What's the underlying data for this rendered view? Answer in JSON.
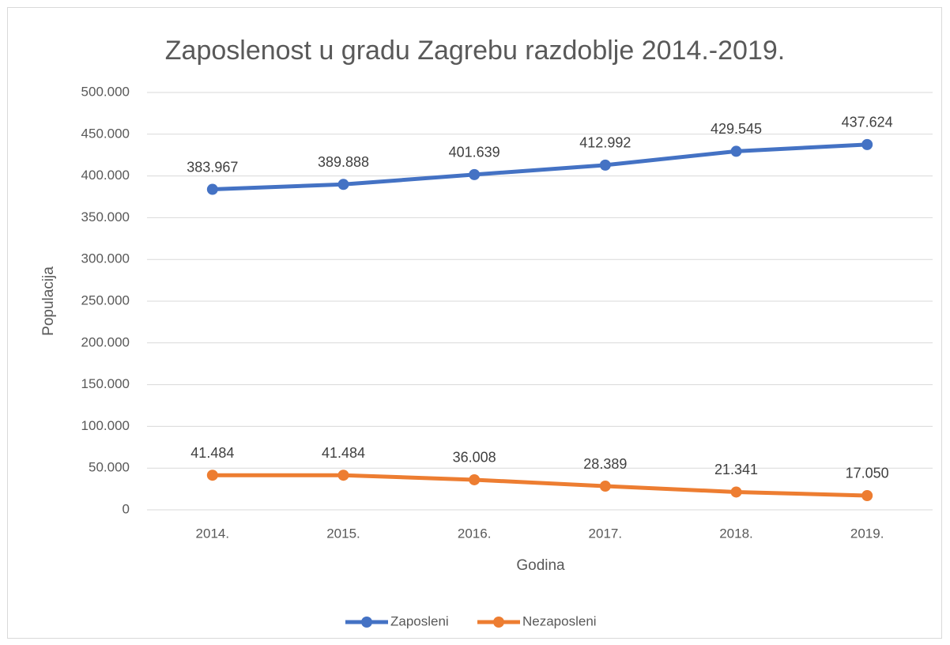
{
  "chart_data": {
    "type": "line",
    "title": "Zaposlenost u gradu Zagrebu razdoblje 2014.-2019.",
    "x_label": "Godina",
    "y_label": "Populacija",
    "categories": [
      "2014.",
      "2015.",
      "2016.",
      "2017.",
      "2018.",
      "2019."
    ],
    "series": [
      {
        "name": "Zaposleni",
        "color": "#4472c4",
        "values": [
          383967,
          389888,
          401639,
          412992,
          429545,
          437624
        ],
        "value_labels": [
          "383.967",
          "389.888",
          "401.639",
          "412.992",
          "429.545",
          "437.624"
        ]
      },
      {
        "name": "Nezaposleni",
        "color": "#ed7d31",
        "values": [
          41484,
          41484,
          36008,
          28389,
          21341,
          17050
        ],
        "value_labels": [
          "41.484",
          "41.484",
          "36.008",
          "28.389",
          "21.341",
          "17.050"
        ]
      }
    ],
    "ylim": [
      0,
      500000
    ],
    "yticks": [
      0,
      {
        "value": 50000,
        "label": "50.000"
      },
      {
        "value": 100000,
        "label": "100.000"
      },
      {
        "value": 150000,
        "label": "150.000"
      },
      {
        "value": 200000,
        "label": "200.000"
      },
      {
        "value": 250000,
        "label": "250.000"
      },
      {
        "value": 300000,
        "label": "300.000"
      },
      {
        "value": 350000,
        "label": "350.000"
      },
      {
        "value": 400000,
        "label": "400.000"
      },
      {
        "value": 450000,
        "label": "450.000"
      },
      {
        "value": 500000,
        "label": "500.000"
      }
    ],
    "grid": true,
    "legend": "bottom"
  }
}
